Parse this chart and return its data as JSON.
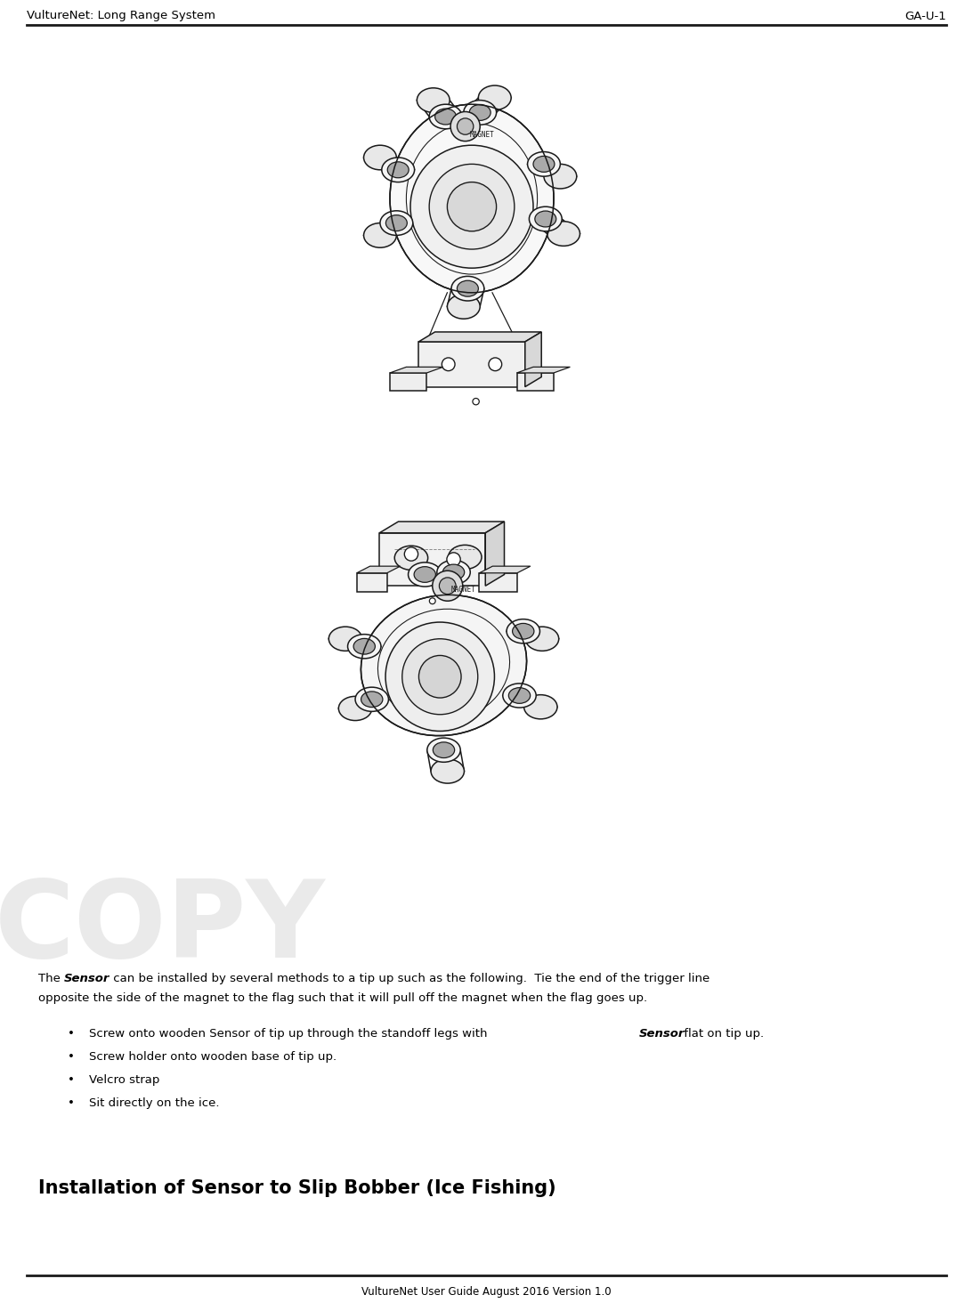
{
  "header_left": "VultureNet: Long Range System",
  "header_right": "GA-U-1",
  "footer_text": "VultureNet User Guide August 2016 Version 1.0",
  "header_font_size": 9.5,
  "footer_font_size": 8.5,
  "body_font_size": 9.5,
  "bullet_font_size": 9.5,
  "section_title_font_size": 15,
  "section_title": "Installation of Sensor to Slip Bobber (Ice Fishing)",
  "bg_color": "#ffffff",
  "text_color": "#000000",
  "line_color": "#000000",
  "draw_color": "#1a1a1a",
  "watermark_text": "COPY",
  "watermark_color": "#cccccc"
}
